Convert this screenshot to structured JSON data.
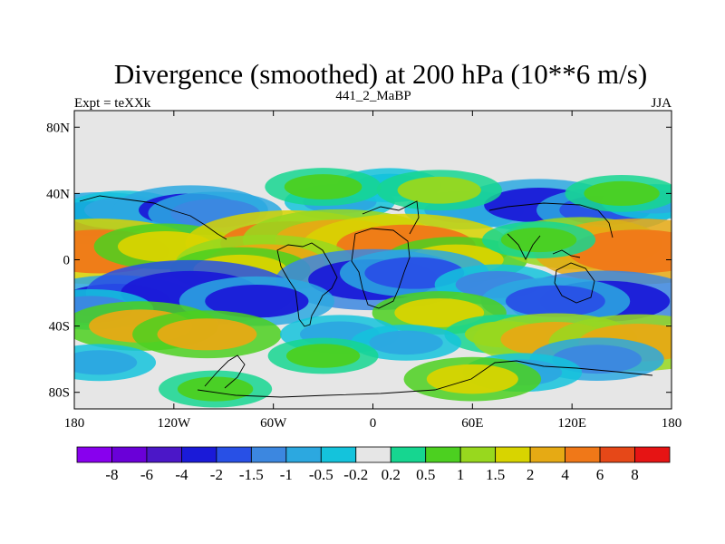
{
  "chart_data": {
    "type": "heatmap",
    "title": "Divergence (smoothed) at 200 hPa (10**6 m/s)",
    "subtitle_left": "Expt = teXXk",
    "subtitle_center": "441_2_MaBP",
    "subtitle_right": "JJA",
    "x_ticks": [
      {
        "value": -180,
        "label": "180"
      },
      {
        "value": -120,
        "label": "120W"
      },
      {
        "value": -60,
        "label": "60W"
      },
      {
        "value": 0,
        "label": "0"
      },
      {
        "value": 60,
        "label": "60E"
      },
      {
        "value": 120,
        "label": "120E"
      },
      {
        "value": 180,
        "label": "180"
      }
    ],
    "y_ticks": [
      {
        "value": 80,
        "label": "80N"
      },
      {
        "value": 40,
        "label": "40N"
      },
      {
        "value": 0,
        "label": "0"
      },
      {
        "value": -40,
        "label": "40S"
      },
      {
        "value": -80,
        "label": "80S"
      }
    ],
    "xlim": [
      -180,
      180
    ],
    "ylim": [
      -90,
      90
    ],
    "missing_color": "#e6e6e6",
    "colorbar": {
      "colors": [
        "#8800ee",
        "#6a00d8",
        "#4b17c8",
        "#1a1ad8",
        "#2850e6",
        "#3c87e0",
        "#2ca8e0",
        "#14c3dc",
        "#e6e6e6",
        "#16d690",
        "#4cd020",
        "#98d81e",
        "#d8d400",
        "#e6aa14",
        "#f07818",
        "#e64818",
        "#e61414"
      ],
      "labels": [
        "-8",
        "-6",
        "-4",
        "-2",
        "-1.5",
        "-1",
        "-0.5",
        "-0.2",
        "0.2",
        "0.5",
        "1",
        "1.5",
        "2",
        "4",
        "6",
        "8"
      ]
    },
    "fields": [
      {
        "lon": -165,
        "lat": 25,
        "value": -2.5
      },
      {
        "lon": -150,
        "lat": 30,
        "value": -1
      },
      {
        "lon": -110,
        "lat": 30,
        "value": -2.2
      },
      {
        "lon": -95,
        "lat": 28,
        "value": -1.5
      },
      {
        "lon": -20,
        "lat": 35,
        "value": -0.7
      },
      {
        "lon": 10,
        "lat": 45,
        "value": -0.5
      },
      {
        "lon": 55,
        "lat": 30,
        "value": -1
      },
      {
        "lon": 100,
        "lat": 33,
        "value": -2.5
      },
      {
        "lon": 140,
        "lat": 30,
        "value": -1.6
      },
      {
        "lon": 170,
        "lat": 35,
        "value": -0.6
      },
      {
        "lon": -30,
        "lat": 44,
        "value": 0.9
      },
      {
        "lon": 40,
        "lat": 42,
        "value": 1.2
      },
      {
        "lon": 150,
        "lat": 40,
        "value": 0.8
      },
      {
        "lon": -165,
        "lat": 5,
        "value": 4
      },
      {
        "lon": -125,
        "lat": 8,
        "value": 1.8
      },
      {
        "lon": -50,
        "lat": 10,
        "value": 4
      },
      {
        "lon": -20,
        "lat": 12,
        "value": 3.5
      },
      {
        "lon": 20,
        "lat": 8,
        "value": 4
      },
      {
        "lon": 50,
        "lat": 0,
        "value": 1.8
      },
      {
        "lon": 125,
        "lat": 10,
        "value": 2.5
      },
      {
        "lon": 160,
        "lat": 5,
        "value": 5
      },
      {
        "lon": 100,
        "lat": 12,
        "value": 0.8
      },
      {
        "lon": -65,
        "lat": -2,
        "value": 3
      },
      {
        "lon": -80,
        "lat": -6,
        "value": 1.7
      },
      {
        "lon": 0,
        "lat": -12,
        "value": -3.5
      },
      {
        "lon": 25,
        "lat": -8,
        "value": -2
      },
      {
        "lon": 75,
        "lat": -15,
        "value": -1.2
      },
      {
        "lon": -155,
        "lat": -25,
        "value": -2.5
      },
      {
        "lon": -110,
        "lat": -20,
        "value": -4
      },
      {
        "lon": -70,
        "lat": -25,
        "value": -2.2
      },
      {
        "lon": 140,
        "lat": -25,
        "value": -3.5
      },
      {
        "lon": 110,
        "lat": -25,
        "value": -2
      },
      {
        "lon": -170,
        "lat": -30,
        "value": -1.2
      },
      {
        "lon": -140,
        "lat": -40,
        "value": 2.2
      },
      {
        "lon": -100,
        "lat": -45,
        "value": 2
      },
      {
        "lon": 40,
        "lat": -32,
        "value": 1.5
      },
      {
        "lon": 80,
        "lat": -45,
        "value": 1.1
      },
      {
        "lon": 110,
        "lat": -48,
        "value": 2.5
      },
      {
        "lon": 160,
        "lat": -50,
        "value": 3
      },
      {
        "lon": -20,
        "lat": -45,
        "value": -1
      },
      {
        "lon": 20,
        "lat": -50,
        "value": -0.7
      },
      {
        "lon": 135,
        "lat": -60,
        "value": -1.5
      },
      {
        "lon": 90,
        "lat": -68,
        "value": -1
      },
      {
        "lon": -165,
        "lat": -62,
        "value": -0.8
      },
      {
        "lon": -30,
        "lat": -58,
        "value": 0.7
      },
      {
        "lon": 60,
        "lat": -72,
        "value": 1.6
      },
      {
        "lon": -95,
        "lat": -78,
        "value": 0.8
      }
    ]
  }
}
